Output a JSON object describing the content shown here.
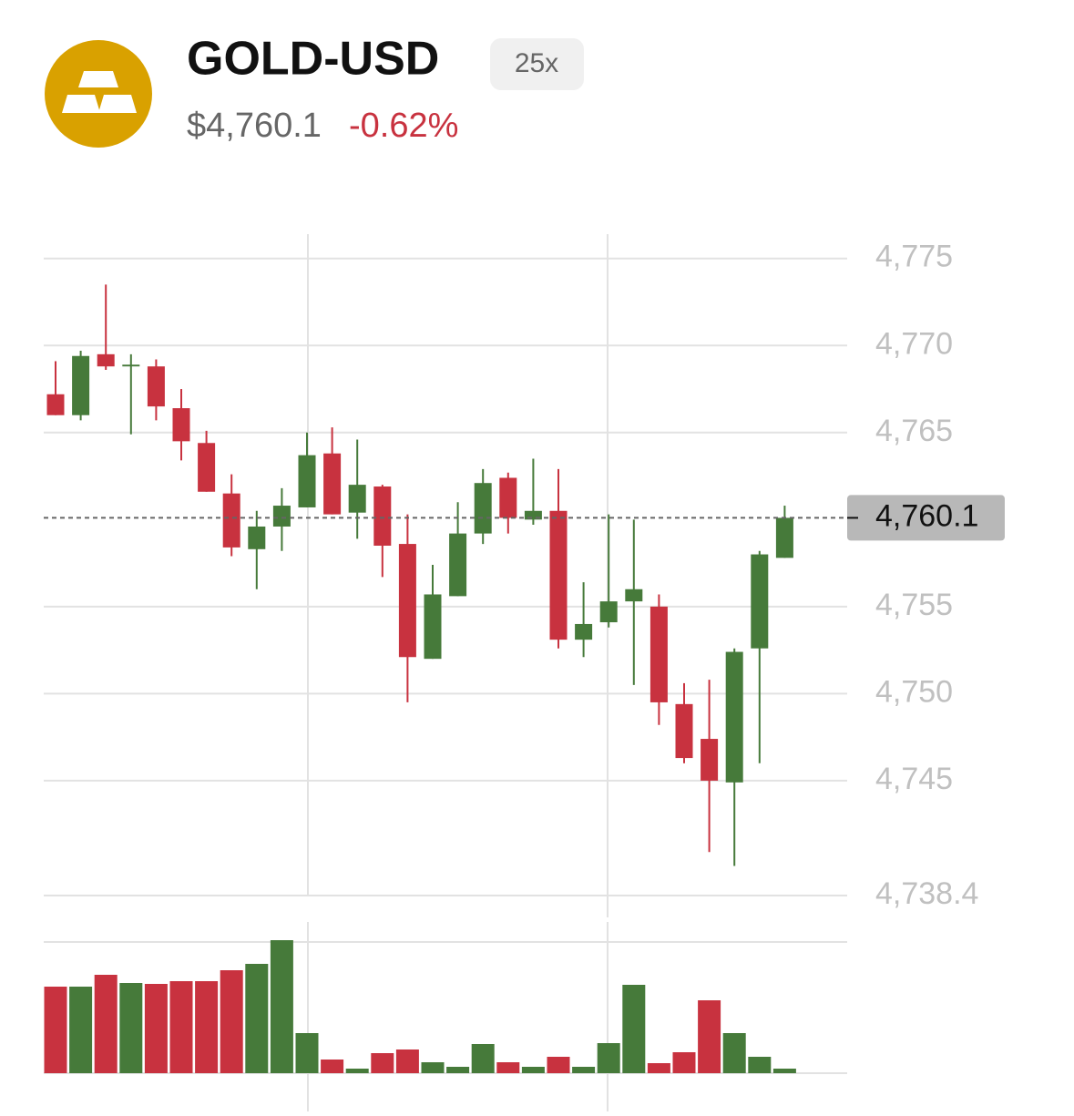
{
  "header": {
    "title": "GOLD-USD",
    "leverage": "25x",
    "price": "$4,760.1",
    "change": "-0.62%"
  },
  "chart_data": {
    "type": "candlestick",
    "up_color": "#467a3a",
    "down_color": "#c8323f",
    "ylim": [
      4738.4,
      4776.4
    ],
    "yticks": [
      {
        "value": 4775,
        "label": "4,775"
      },
      {
        "value": 4770,
        "label": "4,770"
      },
      {
        "value": 4765,
        "label": "4,765"
      },
      {
        "value": 4755,
        "label": "4,755"
      },
      {
        "value": 4750,
        "label": "4,750"
      },
      {
        "value": 4745,
        "label": "4,745"
      },
      {
        "value": 4738.4,
        "label": "4,738.4"
      }
    ],
    "last_price": {
      "value": 4760.1,
      "label": "4,760.1"
    },
    "grid": true,
    "open": [
      4767.2,
      4766.0,
      4769.5,
      4768.8,
      4768.8,
      4766.4,
      4764.4,
      4761.5,
      4758.3,
      4759.6,
      4760.7,
      4763.8,
      4760.4,
      4761.9,
      4758.6,
      4752.0,
      4755.6,
      4759.2,
      4762.4,
      4760.0,
      4760.5,
      4753.1,
      4754.1,
      4755.3,
      4755.0,
      4749.4,
      4747.4,
      4744.9,
      4752.6,
      4757.8
    ],
    "high": [
      4769.1,
      4769.7,
      4773.5,
      4769.5,
      4769.2,
      4767.5,
      4765.1,
      4762.6,
      4760.5,
      4761.8,
      4765.0,
      4765.3,
      4764.6,
      4762.0,
      4760.3,
      4757.4,
      4761.0,
      4762.9,
      4762.7,
      4763.5,
      4762.9,
      4756.4,
      4760.3,
      4760.0,
      4755.7,
      4750.6,
      4750.8,
      4752.6,
      4758.2,
      4760.8
    ],
    "low": [
      4766.0,
      4765.7,
      4768.6,
      4764.9,
      4765.7,
      4763.4,
      4761.6,
      4757.9,
      4756.0,
      4758.2,
      4760.7,
      4760.3,
      4758.9,
      4756.7,
      4749.5,
      4752.0,
      4755.6,
      4758.6,
      4759.2,
      4759.7,
      4752.6,
      4752.1,
      4753.8,
      4750.5,
      4748.2,
      4746.0,
      4740.9,
      4740.1,
      4746.0,
      4757.8
    ],
    "close": [
      4766.0,
      4769.4,
      4768.8,
      4768.9,
      4766.5,
      4764.5,
      4761.6,
      4758.4,
      4759.6,
      4760.8,
      4763.7,
      4760.3,
      4762.0,
      4758.5,
      4752.1,
      4755.7,
      4759.2,
      4762.1,
      4760.1,
      4760.5,
      4753.1,
      4754.0,
      4755.3,
      4756.0,
      4749.5,
      4746.3,
      4745.0,
      4752.4,
      4758.0,
      4760.1
    ],
    "volume": [
      95,
      95,
      108,
      99,
      98,
      101,
      101,
      113,
      120,
      146,
      44,
      15,
      5,
      22,
      26,
      12,
      7,
      32,
      12,
      7,
      18,
      7,
      33,
      97,
      11,
      23,
      80,
      44,
      18,
      5
    ],
    "vlim": [
      0,
      144
    ]
  }
}
